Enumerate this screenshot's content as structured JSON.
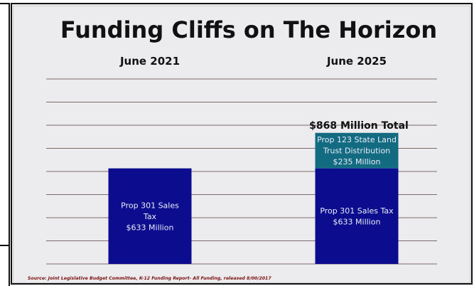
{
  "chart_data": {
    "type": "bar",
    "title": "Funding Cliffs on The Horizon",
    "categories": [
      "June 2021",
      "June 2025"
    ],
    "series": [
      {
        "values": [
          633,
          633
        ],
        "labels": [
          "Prop 301 Sales\nTax\n$633 Million",
          "Prop 301 Sales Tax\n$633 Million"
        ],
        "color": "#0c0c8e"
      },
      {
        "values": [
          0,
          235
        ],
        "labels": [
          "",
          "Prop 123 State Land\nTrust Distribution\n$235 Million"
        ],
        "color": "#136b82"
      }
    ],
    "annotations": [
      {
        "category": "June 2025",
        "text": "$868 Million Total"
      }
    ],
    "ylim": [
      0,
      1225
    ],
    "grid": true,
    "source": "Source: Joint Legislative Budget Committee, K-12 Funding Report- All Funding, released 8/00/2017"
  },
  "colors": {
    "background": "#ececee",
    "gridline": "#7a6a6a",
    "text_dark": "#111111",
    "bar_label": "#e8ecf8",
    "source_text": "#7a1010"
  }
}
